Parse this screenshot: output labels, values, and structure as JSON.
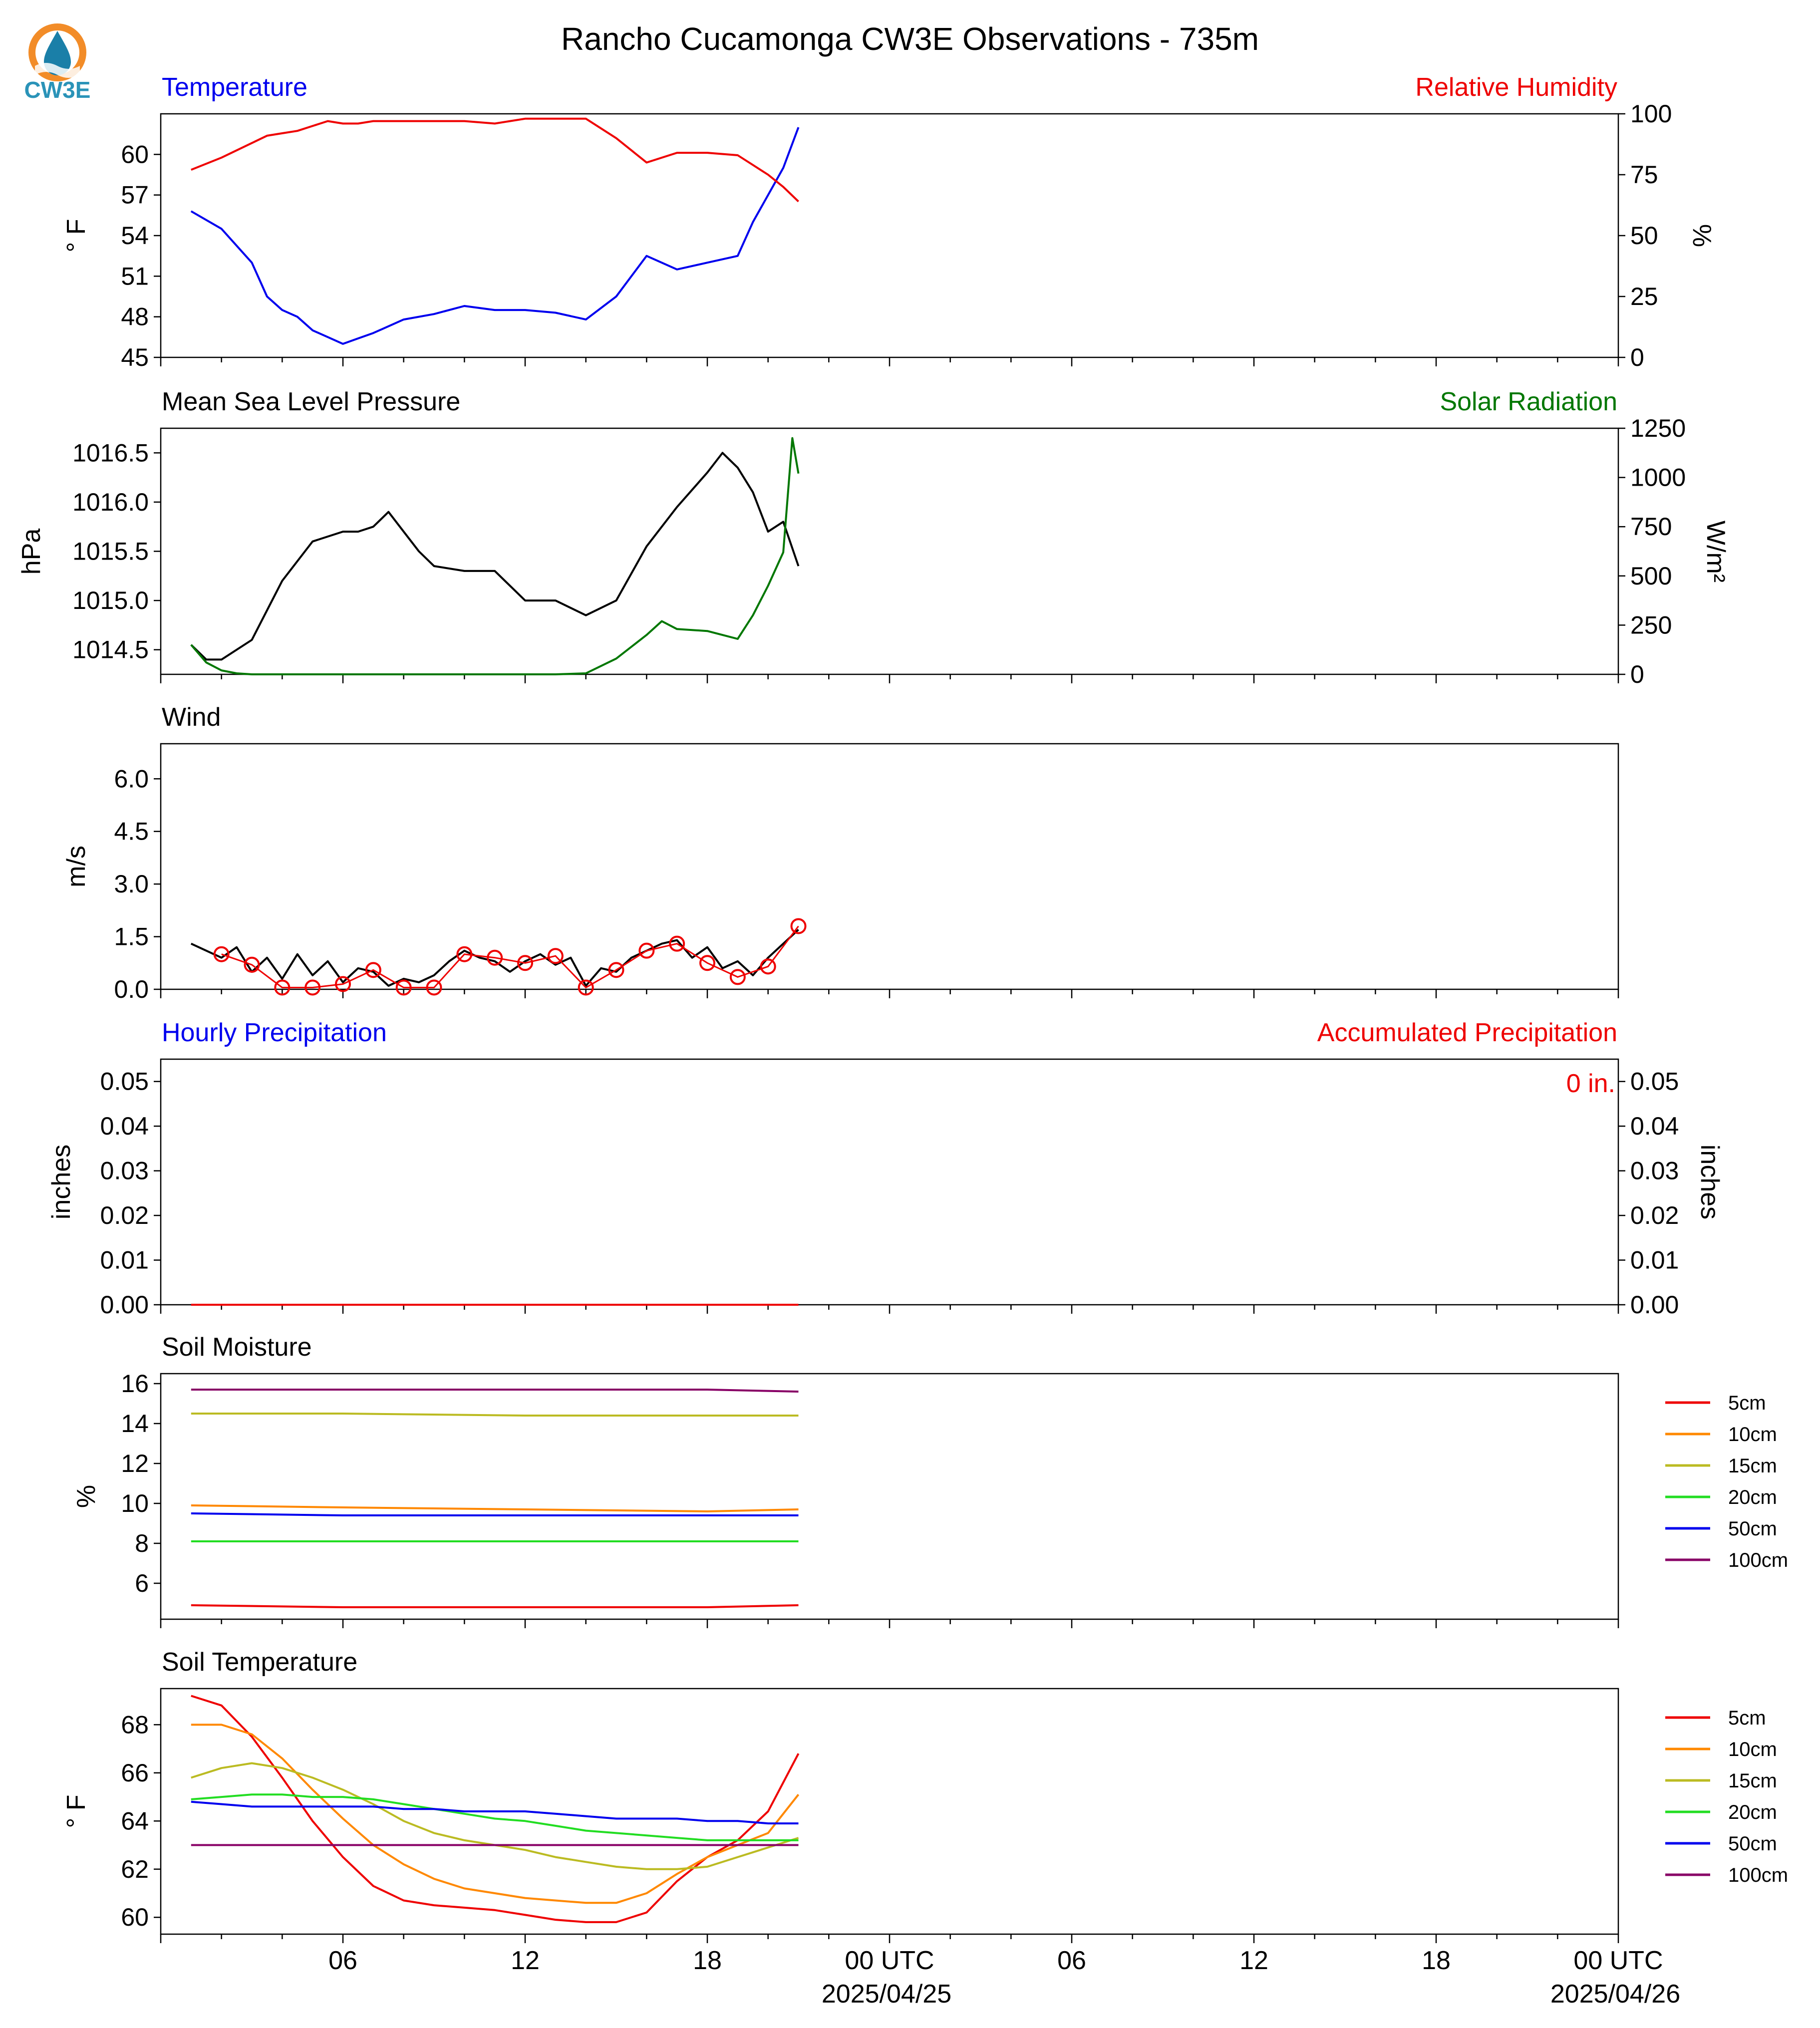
{
  "logo": {
    "text": "CW3E",
    "icon": "cw3e-sun-drop-logo",
    "colors": {
      "sun": "#f28c28",
      "drop": "#1a7fa8",
      "text": "#2a93b8"
    }
  },
  "title": "Rancho Cucamonga CW3E Observations - 735m",
  "x_axis": {
    "hour_ticks": [
      "06",
      "12",
      "18",
      "00 UTC",
      "06",
      "12",
      "18",
      "00 UTC"
    ],
    "date_labels": [
      "2025/04/25",
      "2025/04/26"
    ],
    "range": [
      "2025-04-24T01:00Z",
      "2025-04-26T01:00Z"
    ]
  },
  "colors": {
    "blue": "#0000ee",
    "red": "#ee0000",
    "green": "#007700",
    "black": "#000000"
  },
  "chart_data": [
    {
      "type": "line",
      "panel": "temperature-humidity",
      "left_title": "Temperature",
      "right_title": "Relative Humidity",
      "ylabel": "° F",
      "ylabel_right": "%",
      "ylim": [
        45,
        63
      ],
      "ylim_right": [
        0,
        100
      ],
      "yticks": [
        "45",
        "48",
        "51",
        "54",
        "57",
        "60"
      ],
      "yticks_right": [
        "0",
        "25",
        "50",
        "75",
        "100"
      ],
      "x_hours": [
        1,
        2,
        3,
        3.5,
        4,
        4.5,
        5,
        5.5,
        6,
        6.5,
        7,
        8,
        9,
        10,
        11,
        12,
        13,
        14,
        15,
        16,
        17,
        18,
        19,
        19.5,
        20,
        20.5,
        21
      ],
      "series": [
        {
          "key": "temperature",
          "color": "#0000ee",
          "axis": "left",
          "values": [
            55.8,
            54.5,
            52,
            49.5,
            48.5,
            48,
            47,
            46.5,
            46,
            46.4,
            46.8,
            47.8,
            48.2,
            48.8,
            48.5,
            48.5,
            48.3,
            47.8,
            49.5,
            52.5,
            51.5,
            52,
            52.5,
            55,
            57,
            59,
            62
          ]
        },
        {
          "key": "relative_humidity",
          "color": "#ee0000",
          "axis": "right",
          "values": [
            77,
            82,
            88,
            91,
            92,
            93,
            95,
            97,
            96,
            96,
            97,
            97,
            97,
            97,
            96,
            98,
            98,
            98,
            90,
            80,
            84,
            84,
            83,
            79,
            75,
            70,
            64
          ]
        }
      ]
    },
    {
      "type": "line",
      "panel": "pressure-solar",
      "left_title": "Mean Sea Level Pressure",
      "right_title": "Solar Radiation",
      "ylabel": "hPa",
      "ylabel_right": "W/m²",
      "ylim": [
        1014.25,
        1016.75
      ],
      "ylim_right": [
        0,
        1250
      ],
      "yticks": [
        "1014.5",
        "1015.0",
        "1015.5",
        "1016.0",
        "1016.5"
      ],
      "yticks_right": [
        "0",
        "250",
        "500",
        "750",
        "1000",
        "1250"
      ],
      "series": [
        {
          "key": "pressure",
          "color": "#000000",
          "axis": "left",
          "x_hours": [
            1,
            1.5,
            2,
            3,
            3.5,
            4,
            4.5,
            5,
            6,
            6.5,
            7,
            7.5,
            8,
            8.5,
            9,
            10,
            11,
            12,
            13,
            14,
            15,
            16,
            17,
            18,
            18.5,
            19,
            19.5,
            20,
            20.5,
            21
          ],
          "values": [
            1014.55,
            1014.4,
            1014.4,
            1014.6,
            1014.9,
            1015.2,
            1015.4,
            1015.6,
            1015.7,
            1015.7,
            1015.75,
            1015.9,
            1015.7,
            1015.5,
            1015.35,
            1015.3,
            1015.3,
            1015.0,
            1015.0,
            1014.85,
            1015.0,
            1015.55,
            1015.95,
            1016.3,
            1016.5,
            1016.35,
            1016.1,
            1015.7,
            1015.8,
            1015.35
          ]
        },
        {
          "key": "solar_radiation",
          "color": "#007700",
          "axis": "right",
          "x_hours": [
            1,
            1.5,
            2,
            2.5,
            3,
            6,
            9,
            12,
            13,
            14,
            15,
            16,
            16.5,
            17,
            18,
            19,
            19.5,
            20,
            20.5,
            20.8,
            21
          ],
          "values": [
            150,
            60,
            20,
            5,
            0,
            0,
            0,
            0,
            0,
            5,
            80,
            200,
            270,
            230,
            220,
            180,
            300,
            450,
            620,
            1200,
            1020
          ]
        }
      ]
    },
    {
      "type": "line",
      "panel": "wind",
      "left_title": "Wind",
      "ylabel": "m/s",
      "ylim": [
        0,
        7.0
      ],
      "yticks": [
        "0.0",
        "1.5",
        "3.0",
        "4.5",
        "6.0"
      ],
      "series": [
        {
          "key": "wind_speed",
          "color": "#000000",
          "x_hours": [
            1,
            1.5,
            2,
            2.5,
            3,
            3.5,
            4,
            4.5,
            5,
            5.5,
            6,
            6.5,
            7,
            7.5,
            8,
            8.5,
            9,
            9.5,
            10,
            10.5,
            11,
            11.5,
            12,
            12.5,
            13,
            13.5,
            14,
            14.5,
            15,
            15.5,
            16,
            16.5,
            17,
            17.5,
            18,
            18.5,
            19,
            19.5,
            20,
            20.5,
            21
          ],
          "values": [
            1.3,
            1.1,
            0.9,
            1.2,
            0.5,
            0.9,
            0.3,
            1.0,
            0.4,
            0.8,
            0.2,
            0.6,
            0.5,
            0.1,
            0.3,
            0.2,
            0.4,
            0.8,
            1.1,
            0.9,
            0.8,
            0.5,
            0.8,
            1.0,
            0.7,
            0.9,
            0.1,
            0.6,
            0.5,
            0.9,
            1.1,
            1.3,
            1.4,
            0.9,
            1.2,
            0.6,
            0.8,
            0.4,
            0.9,
            1.3,
            1.7
          ]
        },
        {
          "key": "hourly_mean_wind",
          "color": "#ee0000",
          "marker": "circle",
          "x_hours": [
            2,
            3,
            4,
            5,
            6,
            7,
            8,
            9,
            10,
            11,
            12,
            13,
            14,
            15,
            16,
            17,
            18,
            19,
            20,
            21
          ],
          "values": [
            1.0,
            0.7,
            0.05,
            0.05,
            0.15,
            0.55,
            0.05,
            0.05,
            1.0,
            0.9,
            0.75,
            0.95,
            0.05,
            0.55,
            1.1,
            1.3,
            0.75,
            0.35,
            0.65,
            1.8
          ]
        }
      ]
    },
    {
      "type": "line",
      "panel": "precipitation",
      "left_title": "Hourly Precipitation",
      "right_title": "Accumulated Precipitation",
      "ylabel": "inches",
      "ylabel_right": "inches",
      "ylim": [
        0,
        0.055
      ],
      "yticks": [
        "0.00",
        "0.01",
        "0.02",
        "0.03",
        "0.04",
        "0.05"
      ],
      "yticks_right": [
        "0.00",
        "0.01",
        "0.02",
        "0.03",
        "0.04",
        "0.05"
      ],
      "annotation": "0 in.",
      "series": [
        {
          "key": "hourly_precip",
          "color": "#0000ee",
          "x_hours": [
            1,
            21
          ],
          "values": [
            0,
            0
          ]
        },
        {
          "key": "accumulated_precip",
          "color": "#ee0000",
          "x_hours": [
            1,
            21
          ],
          "values": [
            0,
            0
          ]
        }
      ]
    },
    {
      "type": "line",
      "panel": "soil-moisture",
      "left_title": "Soil Moisture",
      "ylabel": "%",
      "ylim": [
        4.2,
        16.5
      ],
      "yticks": [
        "6",
        "8",
        "10",
        "12",
        "14",
        "16"
      ],
      "legend": [
        "5cm",
        "10cm",
        "15cm",
        "20cm",
        "50cm",
        "100cm"
      ],
      "x_hours": [
        1,
        6,
        12,
        18,
        21
      ],
      "series": [
        {
          "name": "5cm",
          "color": "#ee0000",
          "values": [
            4.9,
            4.8,
            4.8,
            4.8,
            4.9
          ]
        },
        {
          "name": "10cm",
          "color": "#ff8800",
          "values": [
            9.9,
            9.8,
            9.7,
            9.6,
            9.7
          ]
        },
        {
          "name": "15cm",
          "color": "#bbbb22",
          "values": [
            14.5,
            14.5,
            14.4,
            14.4,
            14.4
          ]
        },
        {
          "name": "20cm",
          "color": "#22dd22",
          "values": [
            8.1,
            8.1,
            8.1,
            8.1,
            8.1
          ]
        },
        {
          "name": "50cm",
          "color": "#0000ee",
          "values": [
            9.5,
            9.4,
            9.4,
            9.4,
            9.4
          ]
        },
        {
          "name": "100cm",
          "color": "#880066",
          "values": [
            15.7,
            15.7,
            15.7,
            15.7,
            15.6
          ]
        }
      ]
    },
    {
      "type": "line",
      "panel": "soil-temperature",
      "left_title": "Soil Temperature",
      "ylabel": "° F",
      "ylim": [
        59.3,
        69.5
      ],
      "yticks": [
        "60",
        "62",
        "64",
        "66",
        "68"
      ],
      "legend": [
        "5cm",
        "10cm",
        "15cm",
        "20cm",
        "50cm",
        "100cm"
      ],
      "x_hours": [
        1,
        2,
        3,
        4,
        5,
        6,
        7,
        8,
        9,
        10,
        11,
        12,
        13,
        14,
        15,
        16,
        17,
        18,
        19,
        20,
        21
      ],
      "series": [
        {
          "name": "5cm",
          "color": "#ee0000",
          "values": [
            69.2,
            68.8,
            67.5,
            65.8,
            64.0,
            62.5,
            61.3,
            60.7,
            60.5,
            60.4,
            60.3,
            60.1,
            59.9,
            59.8,
            59.8,
            60.2,
            61.5,
            62.5,
            63.2,
            64.4,
            66.8
          ]
        },
        {
          "name": "10cm",
          "color": "#ff8800",
          "values": [
            68.0,
            68.0,
            67.6,
            66.6,
            65.3,
            64.1,
            63.0,
            62.2,
            61.6,
            61.2,
            61.0,
            60.8,
            60.7,
            60.6,
            60.6,
            61.0,
            61.8,
            62.5,
            63.0,
            63.5,
            65.1
          ]
        },
        {
          "name": "15cm",
          "color": "#bbbb22",
          "values": [
            65.8,
            66.2,
            66.4,
            66.2,
            65.8,
            65.3,
            64.7,
            64.0,
            63.5,
            63.2,
            63.0,
            62.8,
            62.5,
            62.3,
            62.1,
            62.0,
            62.0,
            62.1,
            62.5,
            62.9,
            63.3
          ]
        },
        {
          "name": "20cm",
          "color": "#22dd22",
          "values": [
            64.9,
            65.0,
            65.1,
            65.1,
            65.0,
            65.0,
            64.9,
            64.7,
            64.5,
            64.3,
            64.1,
            64.0,
            63.8,
            63.6,
            63.5,
            63.4,
            63.3,
            63.2,
            63.2,
            63.2,
            63.2
          ]
        },
        {
          "name": "50cm",
          "color": "#0000ee",
          "values": [
            64.8,
            64.7,
            64.6,
            64.6,
            64.6,
            64.6,
            64.6,
            64.5,
            64.5,
            64.4,
            64.4,
            64.4,
            64.3,
            64.2,
            64.1,
            64.1,
            64.1,
            64.0,
            64.0,
            63.9,
            63.9
          ]
        },
        {
          "name": "100cm",
          "color": "#880066",
          "values": [
            63.0,
            63.0,
            63.0,
            63.0,
            63.0,
            63.0,
            63.0,
            63.0,
            63.0,
            63.0,
            63.0,
            63.0,
            63.0,
            63.0,
            63.0,
            63.0,
            63.0,
            63.0,
            63.0,
            63.0,
            63.0
          ]
        }
      ]
    }
  ]
}
